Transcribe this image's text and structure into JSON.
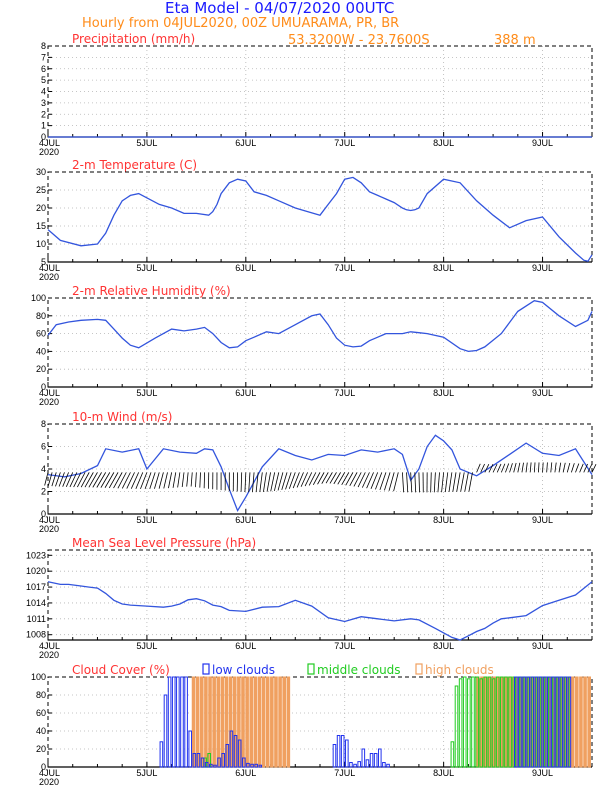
{
  "header": {
    "title": "Eta Model - 04/07/2020 00UTC",
    "subtitle": "Hourly from 04JUL2020, 00Z  UMUARAMA, PR, BR",
    "coords": "53.3200W - 23.7600S",
    "elevation": "388  m"
  },
  "colors": {
    "title": "#1a1aff",
    "subtitle": "#ff8c1a",
    "panel_title": "#ff3333",
    "line": "#3355dd",
    "low": "#2233ee",
    "middle": "#22cc22",
    "high": "#f0a060"
  },
  "x_axis": {
    "first_label": "4JUL",
    "year": "2020",
    "day_labels": [
      "5JUL",
      "6JUL",
      "7JUL",
      "8JUL",
      "9JUL"
    ],
    "hours": 132
  },
  "chart_data": [
    {
      "type": "line",
      "title": "Precipitation (mm/h)",
      "ylim": [
        0,
        8
      ],
      "yticks": [
        0,
        1,
        2,
        3,
        4,
        5,
        6,
        7,
        8
      ],
      "x": [
        0,
        132
      ],
      "values": [
        0,
        0
      ]
    },
    {
      "type": "line",
      "title": "2-m Temperature (C)",
      "ylim": [
        5,
        30
      ],
      "yticks": [
        5,
        10,
        15,
        20,
        25,
        30
      ],
      "x": [
        0,
        3,
        8,
        12,
        14,
        16,
        18,
        20,
        22,
        27,
        30,
        33,
        36,
        39,
        40,
        41,
        42,
        44,
        46,
        48,
        50,
        53,
        56,
        60,
        63,
        66,
        68,
        70,
        72,
        74,
        76,
        78,
        80,
        82,
        84,
        86,
        87,
        88,
        89,
        90,
        92,
        96,
        100,
        104,
        108,
        112,
        116,
        120,
        124,
        128,
        130,
        131,
        132
      ],
      "values": [
        14,
        11,
        9.5,
        10,
        13,
        18,
        22,
        23.5,
        24,
        21,
        20,
        18.5,
        18.5,
        18,
        19,
        21,
        24,
        27,
        28,
        27.5,
        24.5,
        23.5,
        22,
        20,
        19,
        18,
        21,
        24,
        28,
        28.5,
        27,
        24.5,
        23.5,
        22.5,
        21.5,
        20,
        19.5,
        19.3,
        19.5,
        20,
        24,
        28,
        27,
        22,
        18,
        14.5,
        16.5,
        17.5,
        12,
        7.5,
        5.5,
        5.2,
        7
      ]
    },
    {
      "type": "line",
      "title": "2-m Relative Humidity (%)",
      "ylim": [
        0,
        100
      ],
      "yticks": [
        0,
        20,
        40,
        60,
        80,
        100
      ],
      "x": [
        0,
        2,
        5,
        8,
        12,
        14,
        16,
        18,
        20,
        22,
        26,
        30,
        33,
        36,
        38,
        40,
        42,
        44,
        46,
        48,
        50,
        53,
        56,
        60,
        64,
        66,
        68,
        70,
        72,
        74,
        76,
        78,
        80,
        82,
        86,
        88,
        90,
        92,
        96,
        100,
        102,
        104,
        106,
        110,
        114,
        118,
        120,
        124,
        128,
        131,
        132
      ],
      "values": [
        58,
        70,
        73,
        75,
        76,
        75,
        65,
        55,
        47,
        44,
        55,
        65,
        63,
        65,
        67,
        60,
        50,
        44,
        45,
        52,
        56,
        62,
        60,
        70,
        80,
        82,
        70,
        55,
        47,
        45,
        46,
        52,
        56,
        60,
        60,
        62,
        61,
        60,
        56,
        43,
        40,
        41,
        45,
        60,
        85,
        97,
        95,
        80,
        68,
        75,
        85
      ]
    },
    {
      "type": "line",
      "title": "10-m Wind (m/s)",
      "ylim": [
        0,
        8
      ],
      "yticks": [
        0,
        2,
        4,
        6,
        8
      ],
      "x": [
        0,
        4,
        8,
        12,
        14,
        18,
        22,
        24,
        28,
        32,
        36,
        38,
        40,
        42,
        44,
        46,
        48,
        52,
        56,
        60,
        64,
        68,
        72,
        76,
        80,
        84,
        86,
        88,
        90,
        92,
        94,
        96,
        98,
        100,
        104,
        108,
        112,
        116,
        120,
        124,
        128,
        132
      ],
      "values": [
        3.5,
        3.3,
        3.6,
        4.3,
        5.8,
        5.5,
        5.8,
        4,
        5.8,
        5.5,
        5.4,
        5.8,
        5.7,
        4.2,
        2.2,
        0.3,
        1.5,
        4.2,
        5.8,
        5.2,
        4.8,
        5.3,
        5.2,
        5.7,
        5.5,
        5.8,
        5.3,
        3,
        4,
        6,
        7,
        6.5,
        5.7,
        4,
        3.4,
        4.3,
        5.3,
        6.3,
        5.4,
        5.2,
        5.8,
        3.5
      ]
    },
    {
      "type": "line",
      "title": "Mean Sea Level Pressure (hPa)",
      "ylim": [
        1007,
        1024
      ],
      "yticks": [
        1008,
        1011,
        1014,
        1017,
        1020,
        1023
      ],
      "x": [
        0,
        3,
        5,
        8,
        10,
        12,
        14,
        16,
        18,
        20,
        24,
        28,
        30,
        32,
        34,
        36,
        38,
        40,
        42,
        44,
        46,
        48,
        52,
        56,
        60,
        64,
        68,
        72,
        76,
        80,
        84,
        88,
        90,
        94,
        98,
        100,
        102,
        104,
        106,
        108,
        110,
        112,
        116,
        120,
        124,
        128,
        132
      ],
      "values": [
        1018,
        1017.5,
        1017.5,
        1017.2,
        1017,
        1016.8,
        1015.8,
        1014.5,
        1013.8,
        1013.6,
        1013.4,
        1013.2,
        1013.4,
        1013.8,
        1014.6,
        1014.8,
        1014.4,
        1013.6,
        1013.3,
        1012.6,
        1012.5,
        1012.4,
        1013.2,
        1013.3,
        1014.5,
        1013.4,
        1011.2,
        1010.5,
        1011.4,
        1011,
        1010.6,
        1011,
        1010.8,
        1009.2,
        1007.5,
        1007,
        1007.8,
        1008.6,
        1009.2,
        1010.2,
        1011,
        1011.2,
        1011.6,
        1013.5,
        1014.5,
        1015.5,
        1018
      ]
    },
    {
      "type": "bar",
      "title": "Cloud Cover (%)",
      "ylim": [
        0,
        100
      ],
      "yticks": [
        0,
        20,
        40,
        60,
        80,
        100
      ],
      "legend": [
        "low clouds",
        "middle clouds",
        "high clouds"
      ],
      "series": [
        {
          "name": "low clouds",
          "x": [
            27,
            28,
            29,
            30,
            31,
            32,
            33,
            34,
            35,
            36,
            37,
            38,
            39,
            40,
            41,
            42,
            43,
            44,
            45,
            46,
            47,
            48,
            49,
            50,
            51,
            69,
            70,
            71,
            72,
            73,
            74,
            75,
            76,
            77,
            78,
            79,
            80,
            81,
            82,
            113,
            114,
            115,
            116,
            117,
            118,
            119,
            120,
            121,
            122,
            123,
            124,
            125,
            126
          ],
          "values": [
            28,
            80,
            100,
            100,
            100,
            100,
            100,
            40,
            15,
            15,
            10,
            5,
            3,
            2,
            10,
            15,
            25,
            40,
            35,
            30,
            10,
            4,
            3,
            3,
            2,
            25,
            35,
            35,
            30,
            5,
            3,
            6,
            20,
            8,
            15,
            15,
            20,
            5,
            3,
            100,
            100,
            100,
            100,
            100,
            100,
            100,
            100,
            100,
            100,
            100,
            100,
            100,
            100
          ]
        },
        {
          "name": "middle clouds",
          "x": [
            38,
            39,
            98,
            99,
            100,
            101,
            102,
            103,
            104,
            105,
            106,
            107,
            108,
            109,
            110,
            111,
            112,
            113,
            114,
            115,
            116,
            117,
            118,
            119,
            120,
            121,
            122,
            123,
            124,
            125,
            126
          ],
          "values": [
            10,
            15,
            28,
            90,
            98,
            100,
            98,
            100,
            100,
            98,
            100,
            100,
            98,
            100,
            100,
            100,
            100,
            100,
            100,
            100,
            100,
            100,
            100,
            100,
            100,
            100,
            100,
            100,
            100,
            100,
            100
          ]
        },
        {
          "name": "high clouds",
          "x": [
            35,
            36,
            37,
            38,
            39,
            40,
            41,
            42,
            43,
            44,
            45,
            46,
            47,
            48,
            49,
            50,
            51,
            52,
            53,
            54,
            55,
            56,
            57,
            58,
            104,
            105,
            106,
            107,
            108,
            109,
            110,
            111,
            112,
            113,
            114,
            115,
            116,
            117,
            118,
            119,
            120,
            121,
            122,
            123,
            124,
            125,
            126,
            127,
            128,
            129,
            130,
            131
          ],
          "values": [
            100,
            100,
            100,
            100,
            100,
            100,
            100,
            100,
            100,
            100,
            100,
            100,
            100,
            100,
            100,
            100,
            100,
            100,
            100,
            100,
            100,
            100,
            100,
            100,
            100,
            100,
            100,
            100,
            100,
            100,
            100,
            100,
            100,
            100,
            100,
            100,
            100,
            100,
            100,
            100,
            100,
            100,
            100,
            100,
            100,
            100,
            100,
            100,
            100,
            100,
            100,
            100
          ]
        }
      ]
    }
  ]
}
